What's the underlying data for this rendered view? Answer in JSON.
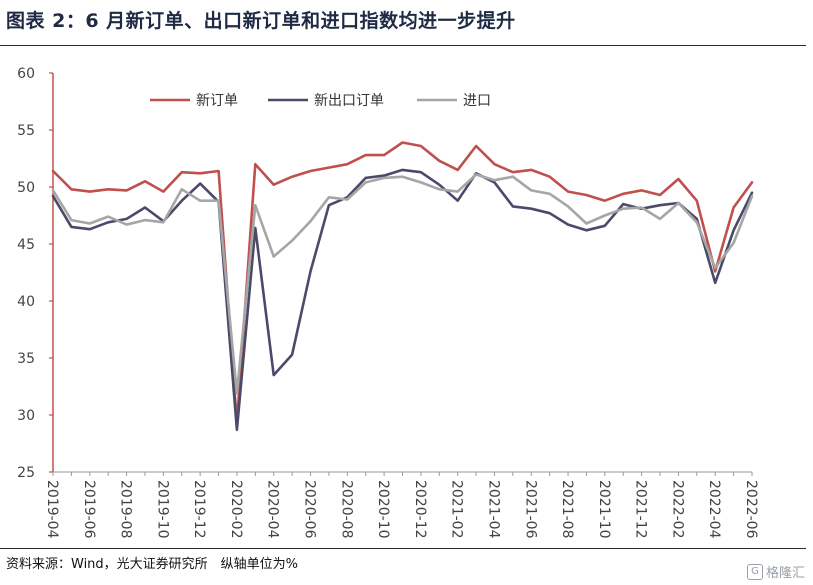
{
  "header": {
    "title": "图表 2：6 月新订单、出口新订单和进口指数均进一步提升"
  },
  "footer": {
    "source": "资料来源：Wind，光大证券研究所　纵轴单位为%",
    "watermark_text": "格隆汇",
    "watermark_icon": "G"
  },
  "chart_data": {
    "type": "line",
    "x_tick_labels": [
      "2019-04",
      "2019-06",
      "2019-08",
      "2019-10",
      "2019-12",
      "2020-02",
      "2020-04",
      "2020-06",
      "2020-08",
      "2020-10",
      "2020-12",
      "2021-02",
      "2021-04",
      "2021-06",
      "2021-08",
      "2021-10",
      "2021-12",
      "2022-02",
      "2022-04",
      "2022-06"
    ],
    "x": [
      "2019-04",
      "2019-05",
      "2019-06",
      "2019-07",
      "2019-08",
      "2019-09",
      "2019-10",
      "2019-11",
      "2019-12",
      "2020-01",
      "2020-02",
      "2020-03",
      "2020-04",
      "2020-05",
      "2020-06",
      "2020-07",
      "2020-08",
      "2020-09",
      "2020-10",
      "2020-11",
      "2020-12",
      "2021-01",
      "2021-02",
      "2021-03",
      "2021-04",
      "2021-05",
      "2021-06",
      "2021-07",
      "2021-08",
      "2021-09",
      "2021-10",
      "2021-11",
      "2021-12",
      "2022-01",
      "2022-02",
      "2022-03",
      "2022-04",
      "2022-05",
      "2022-06"
    ],
    "ylim": [
      25,
      60
    ],
    "y_ticks": [
      25,
      30,
      35,
      40,
      45,
      50,
      55,
      60
    ],
    "legend_position": "top-center",
    "series": [
      {
        "name": "新订单",
        "color": "#c0504d",
        "values": [
          51.4,
          49.8,
          49.6,
          49.8,
          49.7,
          50.5,
          49.6,
          51.3,
          51.2,
          51.4,
          29.3,
          52.0,
          50.2,
          50.9,
          51.4,
          51.7,
          52.0,
          52.8,
          52.8,
          53.9,
          53.6,
          52.3,
          51.5,
          53.6,
          52.0,
          51.3,
          51.5,
          50.9,
          49.6,
          49.3,
          48.8,
          49.4,
          49.7,
          49.3,
          50.7,
          48.8,
          42.6,
          48.2,
          50.4
        ]
      },
      {
        "name": "新出口订单",
        "color": "#4a4a6a",
        "values": [
          49.2,
          46.5,
          46.3,
          46.9,
          47.2,
          48.2,
          47.0,
          48.8,
          50.3,
          48.7,
          28.7,
          46.4,
          33.5,
          35.3,
          42.6,
          48.4,
          49.1,
          50.8,
          51.0,
          51.5,
          51.3,
          50.2,
          48.8,
          51.2,
          50.4,
          48.3,
          48.1,
          47.7,
          46.7,
          46.2,
          46.6,
          48.5,
          48.1,
          48.4,
          48.6,
          47.2,
          41.6,
          46.2,
          49.5
        ]
      },
      {
        "name": "进口",
        "color": "#a6a6a6",
        "values": [
          49.7,
          47.1,
          46.8,
          47.4,
          46.7,
          47.1,
          46.9,
          49.8,
          48.8,
          48.8,
          31.9,
          48.4,
          43.9,
          45.3,
          47.0,
          49.1,
          48.9,
          50.4,
          50.8,
          50.9,
          50.4,
          49.8,
          49.6,
          51.1,
          50.6,
          50.9,
          49.7,
          49.4,
          48.3,
          46.8,
          47.5,
          48.1,
          48.2,
          47.2,
          48.6,
          46.9,
          42.9,
          45.1,
          49.2
        ]
      }
    ]
  }
}
